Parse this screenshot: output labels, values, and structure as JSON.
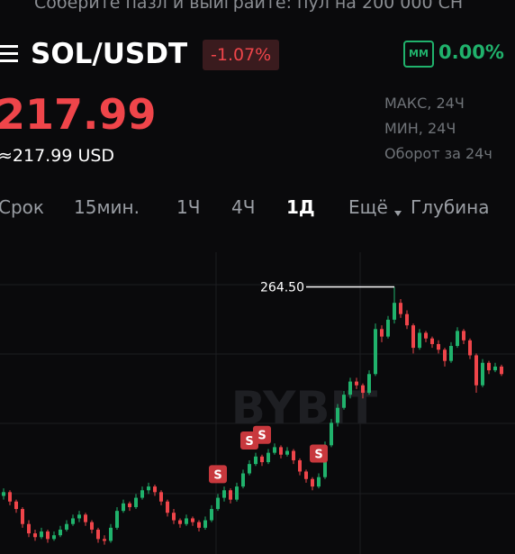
{
  "banner": "Соберите пазл и выиграйте: пул на 200 000 СН",
  "pair": "SOL/USDT",
  "change": "-1.07%",
  "mm_badge": "ММ",
  "mm_value": "0.00%",
  "price": "217.99",
  "price_usd": "≈217.99 USD",
  "stats": [
    "МАКС, 24Ч",
    "МИН, 24Ч",
    "Оборот за 24ч"
  ],
  "tabs": [
    "Срок",
    "15мин.",
    "1Ч",
    "4Ч",
    "1Д",
    "Ещё",
    "Глубина"
  ],
  "active_tab": 4,
  "chart_data": {
    "type": "candlestick",
    "watermark": "BYBIT",
    "ylim": [
      122,
      283
    ],
    "up_color": "#20b26c",
    "down_color": "#ef454a",
    "high_label": {
      "value": 264.5,
      "label": "264.50"
    },
    "markers": [
      {
        "candle": 34,
        "label": "S"
      },
      {
        "candle": 39,
        "label": "S"
      },
      {
        "candle": 41,
        "label": "S"
      },
      {
        "candle": 50,
        "label": "S"
      }
    ],
    "ohlc": [
      [
        153,
        157,
        151,
        155
      ],
      [
        155,
        156,
        148,
        150
      ],
      [
        150,
        151,
        144,
        146
      ],
      [
        146,
        147,
        136,
        138
      ],
      [
        138,
        140,
        131,
        133
      ],
      [
        133,
        135,
        129,
        131
      ],
      [
        131,
        136,
        130,
        134
      ],
      [
        134,
        135,
        128,
        130
      ],
      [
        130,
        134,
        129,
        132
      ],
      [
        132,
        137,
        131,
        135
      ],
      [
        135,
        140,
        134,
        138
      ],
      [
        138,
        143,
        137,
        141
      ],
      [
        141,
        145,
        139,
        143
      ],
      [
        143,
        144,
        137,
        139
      ],
      [
        139,
        140,
        133,
        135
      ],
      [
        135,
        136,
        128,
        130
      ],
      [
        130,
        132,
        127,
        129
      ],
      [
        129,
        138,
        128,
        136
      ],
      [
        136,
        147,
        135,
        145
      ],
      [
        145,
        151,
        144,
        149
      ],
      [
        149,
        150,
        145,
        147
      ],
      [
        147,
        154,
        146,
        152
      ],
      [
        152,
        158,
        151,
        156
      ],
      [
        156,
        160,
        154,
        158
      ],
      [
        158,
        159,
        153,
        155
      ],
      [
        155,
        156,
        148,
        150
      ],
      [
        150,
        151,
        142,
        144
      ],
      [
        144,
        146,
        138,
        140
      ],
      [
        140,
        141,
        136,
        138
      ],
      [
        138,
        143,
        137,
        141
      ],
      [
        141,
        142,
        137,
        139
      ],
      [
        139,
        140,
        134,
        136
      ],
      [
        136,
        142,
        135,
        140
      ],
      [
        140,
        148,
        139,
        146
      ],
      [
        146,
        154,
        145,
        152
      ],
      [
        152,
        158,
        150,
        156
      ],
      [
        156,
        157,
        149,
        151
      ],
      [
        151,
        160,
        150,
        158
      ],
      [
        158,
        167,
        157,
        165
      ],
      [
        165,
        172,
        164,
        170
      ],
      [
        170,
        176,
        169,
        174
      ],
      [
        174,
        175,
        169,
        171
      ],
      [
        171,
        178,
        170,
        176
      ],
      [
        176,
        181,
        175,
        179
      ],
      [
        179,
        180,
        173,
        175
      ],
      [
        175,
        179,
        174,
        177
      ],
      [
        177,
        178,
        170,
        172
      ],
      [
        172,
        173,
        164,
        166
      ],
      [
        166,
        167,
        160,
        162
      ],
      [
        162,
        163,
        156,
        158
      ],
      [
        158,
        165,
        157,
        163
      ],
      [
        163,
        182,
        162,
        180
      ],
      [
        180,
        194,
        179,
        192
      ],
      [
        192,
        202,
        190,
        200
      ],
      [
        200,
        209,
        199,
        207
      ],
      [
        207,
        216,
        205,
        214
      ],
      [
        214,
        216,
        210,
        212
      ],
      [
        212,
        213,
        205,
        208
      ],
      [
        208,
        220,
        207,
        218
      ],
      [
        218,
        245,
        217,
        242
      ],
      [
        242,
        244,
        235,
        238
      ],
      [
        238,
        249,
        237,
        247
      ],
      [
        247,
        264.5,
        245,
        256
      ],
      [
        256,
        258,
        248,
        250
      ],
      [
        250,
        252,
        242,
        244
      ],
      [
        244,
        245,
        229,
        232
      ],
      [
        232,
        242,
        231,
        240
      ],
      [
        240,
        241,
        235,
        237
      ],
      [
        237,
        238,
        232,
        234
      ],
      [
        234,
        236,
        229,
        231
      ],
      [
        231,
        232,
        222,
        225
      ],
      [
        225,
        235,
        224,
        233
      ],
      [
        233,
        243,
        232,
        241
      ],
      [
        241,
        242,
        234,
        236
      ],
      [
        236,
        237,
        226,
        228
      ],
      [
        228,
        229,
        208,
        212
      ],
      [
        212,
        226,
        211,
        224
      ],
      [
        224,
        225,
        218,
        220
      ],
      [
        220,
        224,
        219,
        222
      ],
      [
        222,
        223,
        217,
        217.99
      ]
    ]
  }
}
